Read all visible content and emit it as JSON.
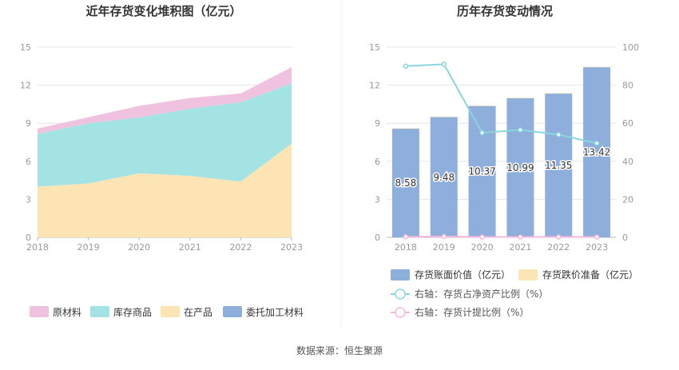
{
  "source": "数据来源：恒生聚源",
  "colors": {
    "raw": "#efc3df",
    "stock": "#a4e3e3",
    "wip": "#fde4b4",
    "consigned": "#8eaedb",
    "bar": "#8eaedb",
    "provision": "#fde4b4",
    "ratio_line": "#8ad6de",
    "provision_line": "#f2b8dc",
    "axis": "#999999",
    "grid": "#e6e6e6",
    "title": "#333333"
  },
  "chart_data": [
    {
      "type": "area",
      "stacked": true,
      "title": "近年存货变化堆积图（亿元）",
      "x": [
        "2018",
        "2019",
        "2020",
        "2021",
        "2022",
        "2023"
      ],
      "ylim": [
        0,
        15
      ],
      "yticks": [
        0,
        3,
        6,
        9,
        12,
        15
      ],
      "grid": true,
      "legend_position": "bottom",
      "series": [
        {
          "name": "委托加工材料",
          "color_key": "consigned",
          "values": [
            0,
            0,
            0,
            0,
            0,
            0
          ]
        },
        {
          "name": "在产品",
          "color_key": "wip",
          "values": [
            4.0,
            4.25,
            5.05,
            4.85,
            4.4,
            7.4
          ]
        },
        {
          "name": "库存商品",
          "color_key": "stock",
          "values": [
            4.15,
            4.75,
            4.4,
            5.3,
            6.25,
            4.75
          ]
        },
        {
          "name": "原材料",
          "color_key": "raw",
          "values": [
            0.43,
            0.48,
            0.92,
            0.84,
            0.7,
            1.27
          ]
        }
      ],
      "legend_order": [
        "原材料",
        "库存商品",
        "在产品",
        "委托加工材料"
      ]
    },
    {
      "type": "bar",
      "title": "历年存货变动情况",
      "categories": [
        "2018",
        "2019",
        "2020",
        "2021",
        "2022",
        "2023"
      ],
      "ylim": [
        0,
        15
      ],
      "yticks": [
        0,
        3,
        6,
        9,
        12,
        15
      ],
      "y2lim": [
        0,
        100
      ],
      "y2ticks": [
        0,
        20,
        40,
        60,
        80,
        100
      ],
      "grid": true,
      "legend_position": "bottom",
      "series": [
        {
          "name": "存货账面价值（亿元）",
          "axis": "left",
          "kind": "bar",
          "values": [
            8.58,
            9.48,
            10.37,
            10.99,
            11.35,
            13.42
          ],
          "labels": [
            "8.58",
            "9.48",
            "10.37",
            "10.99",
            "11.35",
            "13.42"
          ]
        },
        {
          "name": "存货跌价准备（亿元）",
          "axis": "left",
          "kind": "bar_stack",
          "values": [
            0.02,
            0.04,
            0.02,
            0.02,
            0.02,
            0.03
          ]
        },
        {
          "name": "右轴：存货占净资产比例（%）",
          "axis": "right",
          "kind": "line",
          "values": [
            90,
            91,
            55,
            56.5,
            54,
            49.5
          ]
        },
        {
          "name": "右轴：存货计提比例（%）",
          "axis": "right",
          "kind": "line",
          "values": [
            0.3,
            0.4,
            0.2,
            0.2,
            0.2,
            0.2
          ]
        }
      ]
    }
  ]
}
